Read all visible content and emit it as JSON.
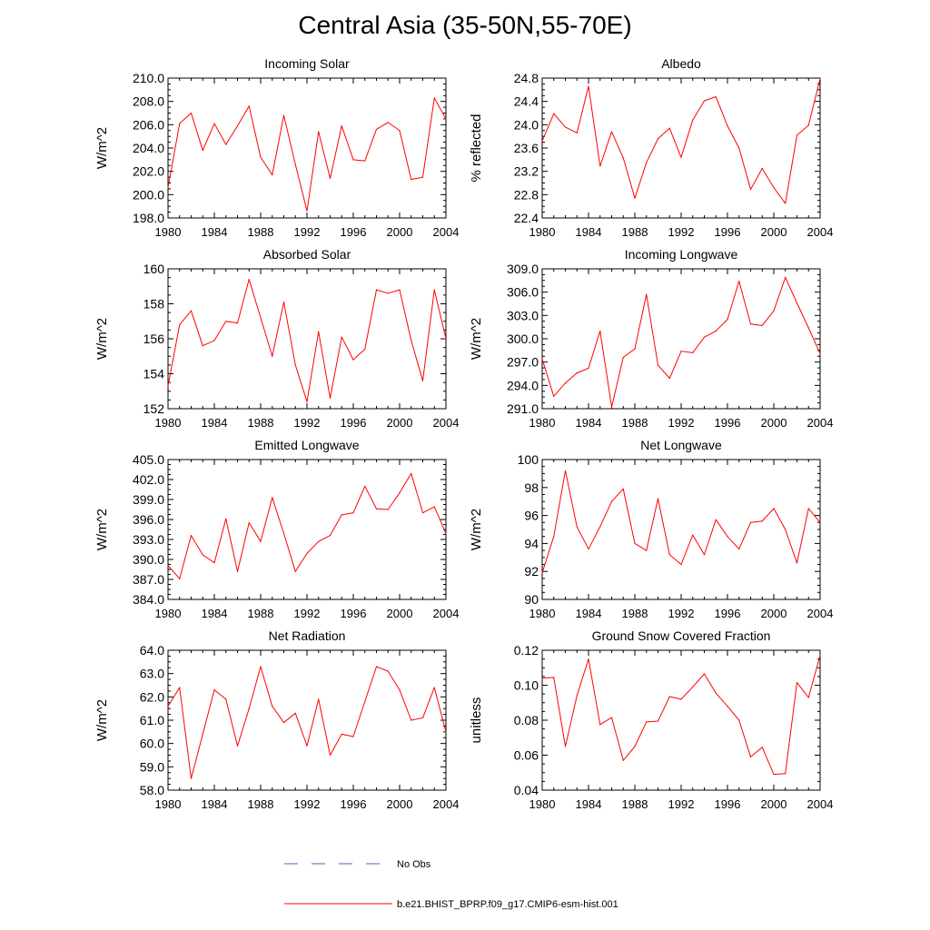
{
  "page": {
    "title": "Central Asia (35-50N,55-70E)"
  },
  "legend": {
    "obs_label": "No Obs",
    "model_label": "b.e21.BHIST_BPRP.f09_g17.CMIP6-esm-hist.001",
    "obs_color": "#5a5ac8",
    "model_color": "#ff0000"
  },
  "colors": {
    "line": "#ff0000",
    "axis": "#000000"
  },
  "chart_data": [
    {
      "type": "line",
      "title": "Incoming Solar",
      "ylabel": "W/m^2",
      "xlim": [
        1980,
        2004
      ],
      "ylim": [
        198,
        210
      ],
      "xticks": [
        1980,
        1984,
        1988,
        1992,
        1996,
        2000,
        2004
      ],
      "yticks": [
        198,
        200,
        202,
        204,
        206,
        208,
        210
      ],
      "yticklabels": [
        "198.0",
        "200.0",
        "202.0",
        "204.0",
        "206.0",
        "208.0",
        "210.0"
      ],
      "x": [
        1980,
        1981,
        1982,
        1983,
        1984,
        1985,
        1986,
        1987,
        1988,
        1989,
        1990,
        1991,
        1992,
        1993,
        1994,
        1995,
        1996,
        1997,
        1998,
        1999,
        2000,
        2001,
        2002,
        2003,
        2004
      ],
      "values": [
        200.6,
        206.1,
        207.0,
        203.8,
        206.1,
        204.3,
        205.9,
        207.6,
        203.2,
        201.7,
        206.8,
        202.6,
        198.6,
        205.4,
        201.4,
        205.9,
        203.0,
        202.9,
        205.6,
        206.2,
        205.5,
        201.3,
        201.5,
        208.3,
        206.5
      ]
    },
    {
      "type": "line",
      "title": "Albedo",
      "ylabel": "% reflected",
      "xlim": [
        1980,
        2004
      ],
      "ylim": [
        22.4,
        24.8
      ],
      "xticks": [
        1980,
        1984,
        1988,
        1992,
        1996,
        2000,
        2004
      ],
      "yticks": [
        22.4,
        22.8,
        23.2,
        23.6,
        24.0,
        24.4,
        24.8
      ],
      "yticklabels": [
        "22.4",
        "22.8",
        "23.2",
        "23.6",
        "24.0",
        "24.4",
        "24.8"
      ],
      "x": [
        1980,
        1981,
        1982,
        1983,
        1984,
        1985,
        1986,
        1987,
        1988,
        1989,
        1990,
        1991,
        1992,
        1993,
        1994,
        1995,
        1996,
        1997,
        1998,
        1999,
        2000,
        2001,
        2002,
        2003,
        2004
      ],
      "values": [
        23.72,
        24.19,
        23.96,
        23.86,
        24.66,
        23.29,
        23.88,
        23.43,
        22.74,
        23.35,
        23.76,
        23.94,
        23.44,
        24.08,
        24.41,
        24.48,
        23.98,
        23.6,
        22.89,
        23.25,
        22.92,
        22.65,
        23.82,
        23.99,
        24.79
      ]
    },
    {
      "type": "line",
      "title": "Absorbed Solar",
      "ylabel": "W/m^2",
      "xlim": [
        1980,
        2004
      ],
      "ylim": [
        152,
        160
      ],
      "xticks": [
        1980,
        1984,
        1988,
        1992,
        1996,
        2000,
        2004
      ],
      "yticks": [
        152,
        154,
        156,
        158,
        160
      ],
      "yticklabels": [
        "152",
        "154",
        "156",
        "158",
        "160"
      ],
      "x": [
        1980,
        1981,
        1982,
        1983,
        1984,
        1985,
        1986,
        1987,
        1988,
        1989,
        1990,
        1991,
        1992,
        1993,
        1994,
        1995,
        1996,
        1997,
        1998,
        1999,
        2000,
        2001,
        2002,
        2003,
        2004
      ],
      "values": [
        153.3,
        156.8,
        157.6,
        155.6,
        155.9,
        157.0,
        156.9,
        159.4,
        157.2,
        155.0,
        158.1,
        154.5,
        152.4,
        156.4,
        152.6,
        156.1,
        154.8,
        155.4,
        158.8,
        158.6,
        158.8,
        155.9,
        153.6,
        158.8,
        156.0
      ]
    },
    {
      "type": "line",
      "title": "Incoming Longwave",
      "ylabel": "W/m^2",
      "xlim": [
        1980,
        2004
      ],
      "ylim": [
        291,
        309
      ],
      "xticks": [
        1980,
        1984,
        1988,
        1992,
        1996,
        2000,
        2004
      ],
      "yticks": [
        291,
        294,
        297,
        300,
        303,
        306,
        309
      ],
      "yticklabels": [
        "291.0",
        "294.0",
        "297.0",
        "300.0",
        "303.0",
        "306.0",
        "309.0"
      ],
      "x": [
        1980,
        1981,
        1982,
        1983,
        1984,
        1985,
        1986,
        1987,
        1988,
        1989,
        1990,
        1991,
        1992,
        1993,
        1994,
        1995,
        1996,
        1997,
        1998,
        1999,
        2000,
        2001,
        2002,
        2003,
        2004
      ],
      "values": [
        297.4,
        292.6,
        294.3,
        295.6,
        296.2,
        301.0,
        291.2,
        297.6,
        298.7,
        305.7,
        296.6,
        294.9,
        298.4,
        298.2,
        300.2,
        301.0,
        302.5,
        307.4,
        301.9,
        301.7,
        303.6,
        307.9,
        304.6,
        301.4,
        298.1
      ]
    },
    {
      "type": "line",
      "title": "Emitted Longwave",
      "ylabel": "W/m^2",
      "xlim": [
        1980,
        2004
      ],
      "ylim": [
        384,
        405
      ],
      "xticks": [
        1980,
        1984,
        1988,
        1992,
        1996,
        2000,
        2004
      ],
      "yticks": [
        384,
        387,
        390,
        393,
        396,
        399,
        402,
        405
      ],
      "yticklabels": [
        "384.0",
        "387.0",
        "390.0",
        "393.0",
        "396.0",
        "399.0",
        "402.0",
        "405.0"
      ],
      "x": [
        1980,
        1981,
        1982,
        1983,
        1984,
        1985,
        1986,
        1987,
        1988,
        1989,
        1990,
        1991,
        1992,
        1993,
        1994,
        1995,
        1996,
        1997,
        1998,
        1999,
        2000,
        2001,
        2002,
        2003,
        2004
      ],
      "values": [
        389.1,
        387.1,
        393.6,
        390.7,
        389.5,
        396.1,
        388.2,
        395.5,
        392.7,
        399.3,
        393.9,
        388.2,
        390.9,
        392.7,
        393.6,
        396.7,
        397.0,
        401.0,
        397.6,
        397.5,
        400.0,
        402.9,
        397.0,
        397.9,
        393.9
      ]
    },
    {
      "type": "line",
      "title": "Net Longwave",
      "ylabel": "W/m^2",
      "xlim": [
        1980,
        2004
      ],
      "ylim": [
        90,
        100
      ],
      "xticks": [
        1980,
        1984,
        1988,
        1992,
        1996,
        2000,
        2004
      ],
      "yticks": [
        90,
        92,
        94,
        96,
        98,
        100
      ],
      "yticklabels": [
        "90",
        "92",
        "94",
        "96",
        "98",
        "100"
      ],
      "x": [
        1980,
        1981,
        1982,
        1983,
        1984,
        1985,
        1986,
        1987,
        1988,
        1989,
        1990,
        1991,
        1992,
        1993,
        1994,
        1995,
        1996,
        1997,
        1998,
        1999,
        2000,
        2001,
        2002,
        2003,
        2004
      ],
      "values": [
        91.9,
        94.5,
        99.2,
        95.2,
        93.6,
        95.2,
        97.0,
        97.9,
        94.0,
        93.5,
        97.2,
        93.2,
        92.5,
        94.6,
        93.2,
        95.7,
        94.5,
        93.6,
        95.5,
        95.6,
        96.5,
        95.0,
        92.6,
        96.5,
        95.5
      ]
    },
    {
      "type": "line",
      "title": "Net Radiation",
      "ylabel": "W/m^2",
      "xlim": [
        1980,
        2004
      ],
      "ylim": [
        58,
        64
      ],
      "xticks": [
        1980,
        1984,
        1988,
        1992,
        1996,
        2000,
        2004
      ],
      "yticks": [
        58,
        59,
        60,
        61,
        62,
        63,
        64
      ],
      "yticklabels": [
        "58.0",
        "59.0",
        "60.0",
        "61.0",
        "62.0",
        "63.0",
        "64.0"
      ],
      "x": [
        1980,
        1981,
        1982,
        1983,
        1984,
        1985,
        1986,
        1987,
        1988,
        1989,
        1990,
        1991,
        1992,
        1993,
        1994,
        1995,
        1996,
        1997,
        1998,
        1999,
        2000,
        2001,
        2002,
        2003,
        2004
      ],
      "values": [
        61.6,
        62.4,
        58.5,
        60.4,
        62.3,
        61.9,
        59.9,
        61.5,
        63.3,
        61.6,
        60.9,
        61.3,
        59.9,
        61.9,
        59.5,
        60.4,
        60.3,
        61.8,
        63.3,
        63.1,
        62.3,
        61.0,
        61.1,
        62.4,
        60.5
      ]
    },
    {
      "type": "line",
      "title": "Ground Snow Covered Fraction",
      "ylabel": "unitless",
      "xlim": [
        1980,
        2004
      ],
      "ylim": [
        0.04,
        0.12
      ],
      "xticks": [
        1980,
        1984,
        1988,
        1992,
        1996,
        2000,
        2004
      ],
      "yticks": [
        0.04,
        0.06,
        0.08,
        0.1,
        0.12
      ],
      "yticklabels": [
        "0.04",
        "0.06",
        "0.08",
        "0.10",
        "0.12"
      ],
      "x": [
        1980,
        1981,
        1982,
        1983,
        1984,
        1985,
        1986,
        1987,
        1988,
        1989,
        1990,
        1991,
        1992,
        1993,
        1994,
        1995,
        1996,
        1997,
        1998,
        1999,
        2000,
        2001,
        2002,
        2003,
        2004
      ],
      "values": [
        0.104,
        0.1045,
        0.065,
        0.094,
        0.115,
        0.0775,
        0.0815,
        0.057,
        0.065,
        0.079,
        0.0795,
        0.0935,
        0.092,
        0.099,
        0.1065,
        0.0955,
        0.088,
        0.08,
        0.059,
        0.0645,
        0.049,
        0.0495,
        0.1015,
        0.093,
        0.117
      ]
    }
  ]
}
